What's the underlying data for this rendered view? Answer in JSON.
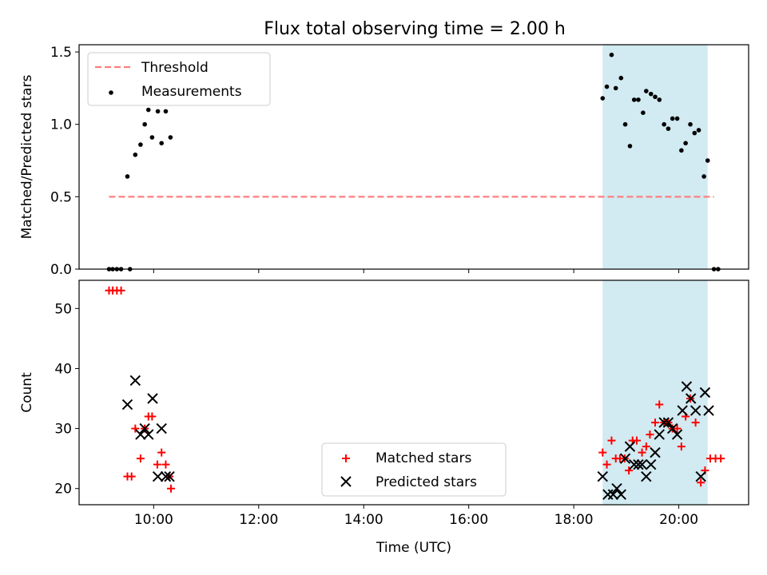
{
  "title": "Flux total observing time = 2.00 h",
  "chart_data": [
    {
      "type": "scatter",
      "panel": "top",
      "ylabel": "Matched/Predicted stars",
      "ylim": [
        0,
        1.55
      ],
      "xlim": [
        8.58,
        21.33
      ],
      "yticks": [
        0,
        0.5,
        1.0,
        1.5
      ],
      "ytick_labels": [
        "0.0",
        "0.5",
        "1.0",
        "1.5"
      ],
      "shaded_span": [
        18.55,
        20.55
      ],
      "shade_color": "#add8e6",
      "threshold": {
        "name": "Threshold",
        "y": 0.5,
        "x_range": [
          9.15,
          20.67
        ],
        "color": "#ff7f7f"
      },
      "legend": {
        "location": "upper-left",
        "entries": [
          "Threshold",
          "Measurements"
        ]
      },
      "series": [
        {
          "name": "Measurements",
          "color": "#000000",
          "marker": "dot",
          "points": [
            [
              9.15,
              0
            ],
            [
              9.22,
              0
            ],
            [
              9.3,
              0
            ],
            [
              9.38,
              0
            ],
            [
              9.55,
              0
            ],
            [
              9.5,
              0.64
            ],
            [
              9.65,
              0.79
            ],
            [
              9.75,
              0.86
            ],
            [
              9.83,
              1.0
            ],
            [
              9.9,
              1.1
            ],
            [
              9.97,
              0.91
            ],
            [
              10.08,
              1.09
            ],
            [
              10.15,
              0.87
            ],
            [
              10.23,
              1.09
            ],
            [
              10.32,
              0.91
            ],
            [
              18.55,
              1.18
            ],
            [
              18.63,
              1.26
            ],
            [
              18.72,
              1.48
            ],
            [
              18.8,
              1.25
            ],
            [
              18.9,
              1.32
            ],
            [
              18.98,
              1.0
            ],
            [
              19.07,
              0.85
            ],
            [
              19.15,
              1.17
            ],
            [
              19.23,
              1.17
            ],
            [
              19.32,
              1.08
            ],
            [
              19.38,
              1.23
            ],
            [
              19.47,
              1.21
            ],
            [
              19.55,
              1.19
            ],
            [
              19.63,
              1.17
            ],
            [
              19.72,
              1.0
            ],
            [
              19.8,
              0.97
            ],
            [
              19.88,
              1.04
            ],
            [
              19.97,
              1.04
            ],
            [
              20.05,
              0.82
            ],
            [
              20.13,
              0.87
            ],
            [
              20.22,
              1.0
            ],
            [
              20.3,
              0.94
            ],
            [
              20.38,
              0.96
            ],
            [
              20.48,
              0.64
            ],
            [
              20.55,
              0.75
            ],
            [
              20.67,
              0
            ],
            [
              20.75,
              0
            ]
          ]
        }
      ]
    },
    {
      "type": "scatter",
      "panel": "bottom",
      "xlabel": "Time (UTC)",
      "ylabel": "Count",
      "ylim": [
        17.3,
        54.7
      ],
      "xlim": [
        8.58,
        21.33
      ],
      "yticks": [
        20,
        30,
        40,
        50
      ],
      "ytick_labels": [
        "20",
        "30",
        "40",
        "50"
      ],
      "xticks": [
        10,
        12,
        14,
        16,
        18,
        20
      ],
      "xtick_labels": [
        "10:00",
        "12:00",
        "14:00",
        "16:00",
        "18:00",
        "20:00"
      ],
      "shaded_span": [
        18.55,
        20.55
      ],
      "legend": {
        "location": "lower-center",
        "entries": [
          "Matched stars",
          "Predicted stars"
        ]
      },
      "series": [
        {
          "name": "Matched stars",
          "color": "#ff0000",
          "marker": "plus",
          "points": [
            [
              9.15,
              53
            ],
            [
              9.22,
              53
            ],
            [
              9.3,
              53
            ],
            [
              9.38,
              53
            ],
            [
              9.5,
              22
            ],
            [
              9.58,
              22
            ],
            [
              9.65,
              30
            ],
            [
              9.75,
              25
            ],
            [
              9.83,
              30
            ],
            [
              9.9,
              32
            ],
            [
              9.97,
              32
            ],
            [
              10.07,
              24
            ],
            [
              10.15,
              26
            ],
            [
              10.23,
              24
            ],
            [
              10.3,
              22
            ],
            [
              10.33,
              20
            ],
            [
              18.55,
              26
            ],
            [
              18.63,
              24
            ],
            [
              18.72,
              28
            ],
            [
              18.8,
              25
            ],
            [
              18.88,
              25
            ],
            [
              18.97,
              25
            ],
            [
              19.05,
              23
            ],
            [
              19.12,
              28
            ],
            [
              19.2,
              28
            ],
            [
              19.3,
              26
            ],
            [
              19.38,
              27
            ],
            [
              19.45,
              29
            ],
            [
              19.55,
              31
            ],
            [
              19.63,
              34
            ],
            [
              19.72,
              31
            ],
            [
              19.8,
              31
            ],
            [
              19.88,
              30
            ],
            [
              19.97,
              30
            ],
            [
              20.05,
              27
            ],
            [
              20.13,
              32
            ],
            [
              20.22,
              35
            ],
            [
              20.32,
              31
            ],
            [
              20.42,
              21
            ],
            [
              20.5,
              23
            ],
            [
              20.6,
              25
            ],
            [
              20.7,
              25
            ],
            [
              20.8,
              25
            ]
          ]
        },
        {
          "name": "Predicted stars",
          "color": "#000000",
          "marker": "x",
          "points": [
            [
              9.5,
              34
            ],
            [
              9.65,
              38
            ],
            [
              9.75,
              29
            ],
            [
              9.83,
              30
            ],
            [
              9.9,
              29
            ],
            [
              9.98,
              35
            ],
            [
              10.08,
              22
            ],
            [
              10.15,
              30
            ],
            [
              10.23,
              22
            ],
            [
              10.3,
              22
            ],
            [
              18.55,
              22
            ],
            [
              18.65,
              19
            ],
            [
              18.75,
              19
            ],
            [
              18.82,
              20
            ],
            [
              18.9,
              19
            ],
            [
              18.98,
              25
            ],
            [
              19.07,
              27
            ],
            [
              19.15,
              24
            ],
            [
              19.23,
              24
            ],
            [
              19.3,
              24
            ],
            [
              19.38,
              22
            ],
            [
              19.47,
              24
            ],
            [
              19.55,
              26
            ],
            [
              19.63,
              29
            ],
            [
              19.72,
              31
            ],
            [
              19.8,
              31
            ],
            [
              19.88,
              30
            ],
            [
              19.97,
              29
            ],
            [
              20.07,
              33
            ],
            [
              20.15,
              37
            ],
            [
              20.23,
              35
            ],
            [
              20.32,
              33
            ],
            [
              20.42,
              22
            ],
            [
              20.5,
              36
            ],
            [
              20.57,
              33
            ]
          ]
        }
      ]
    }
  ]
}
